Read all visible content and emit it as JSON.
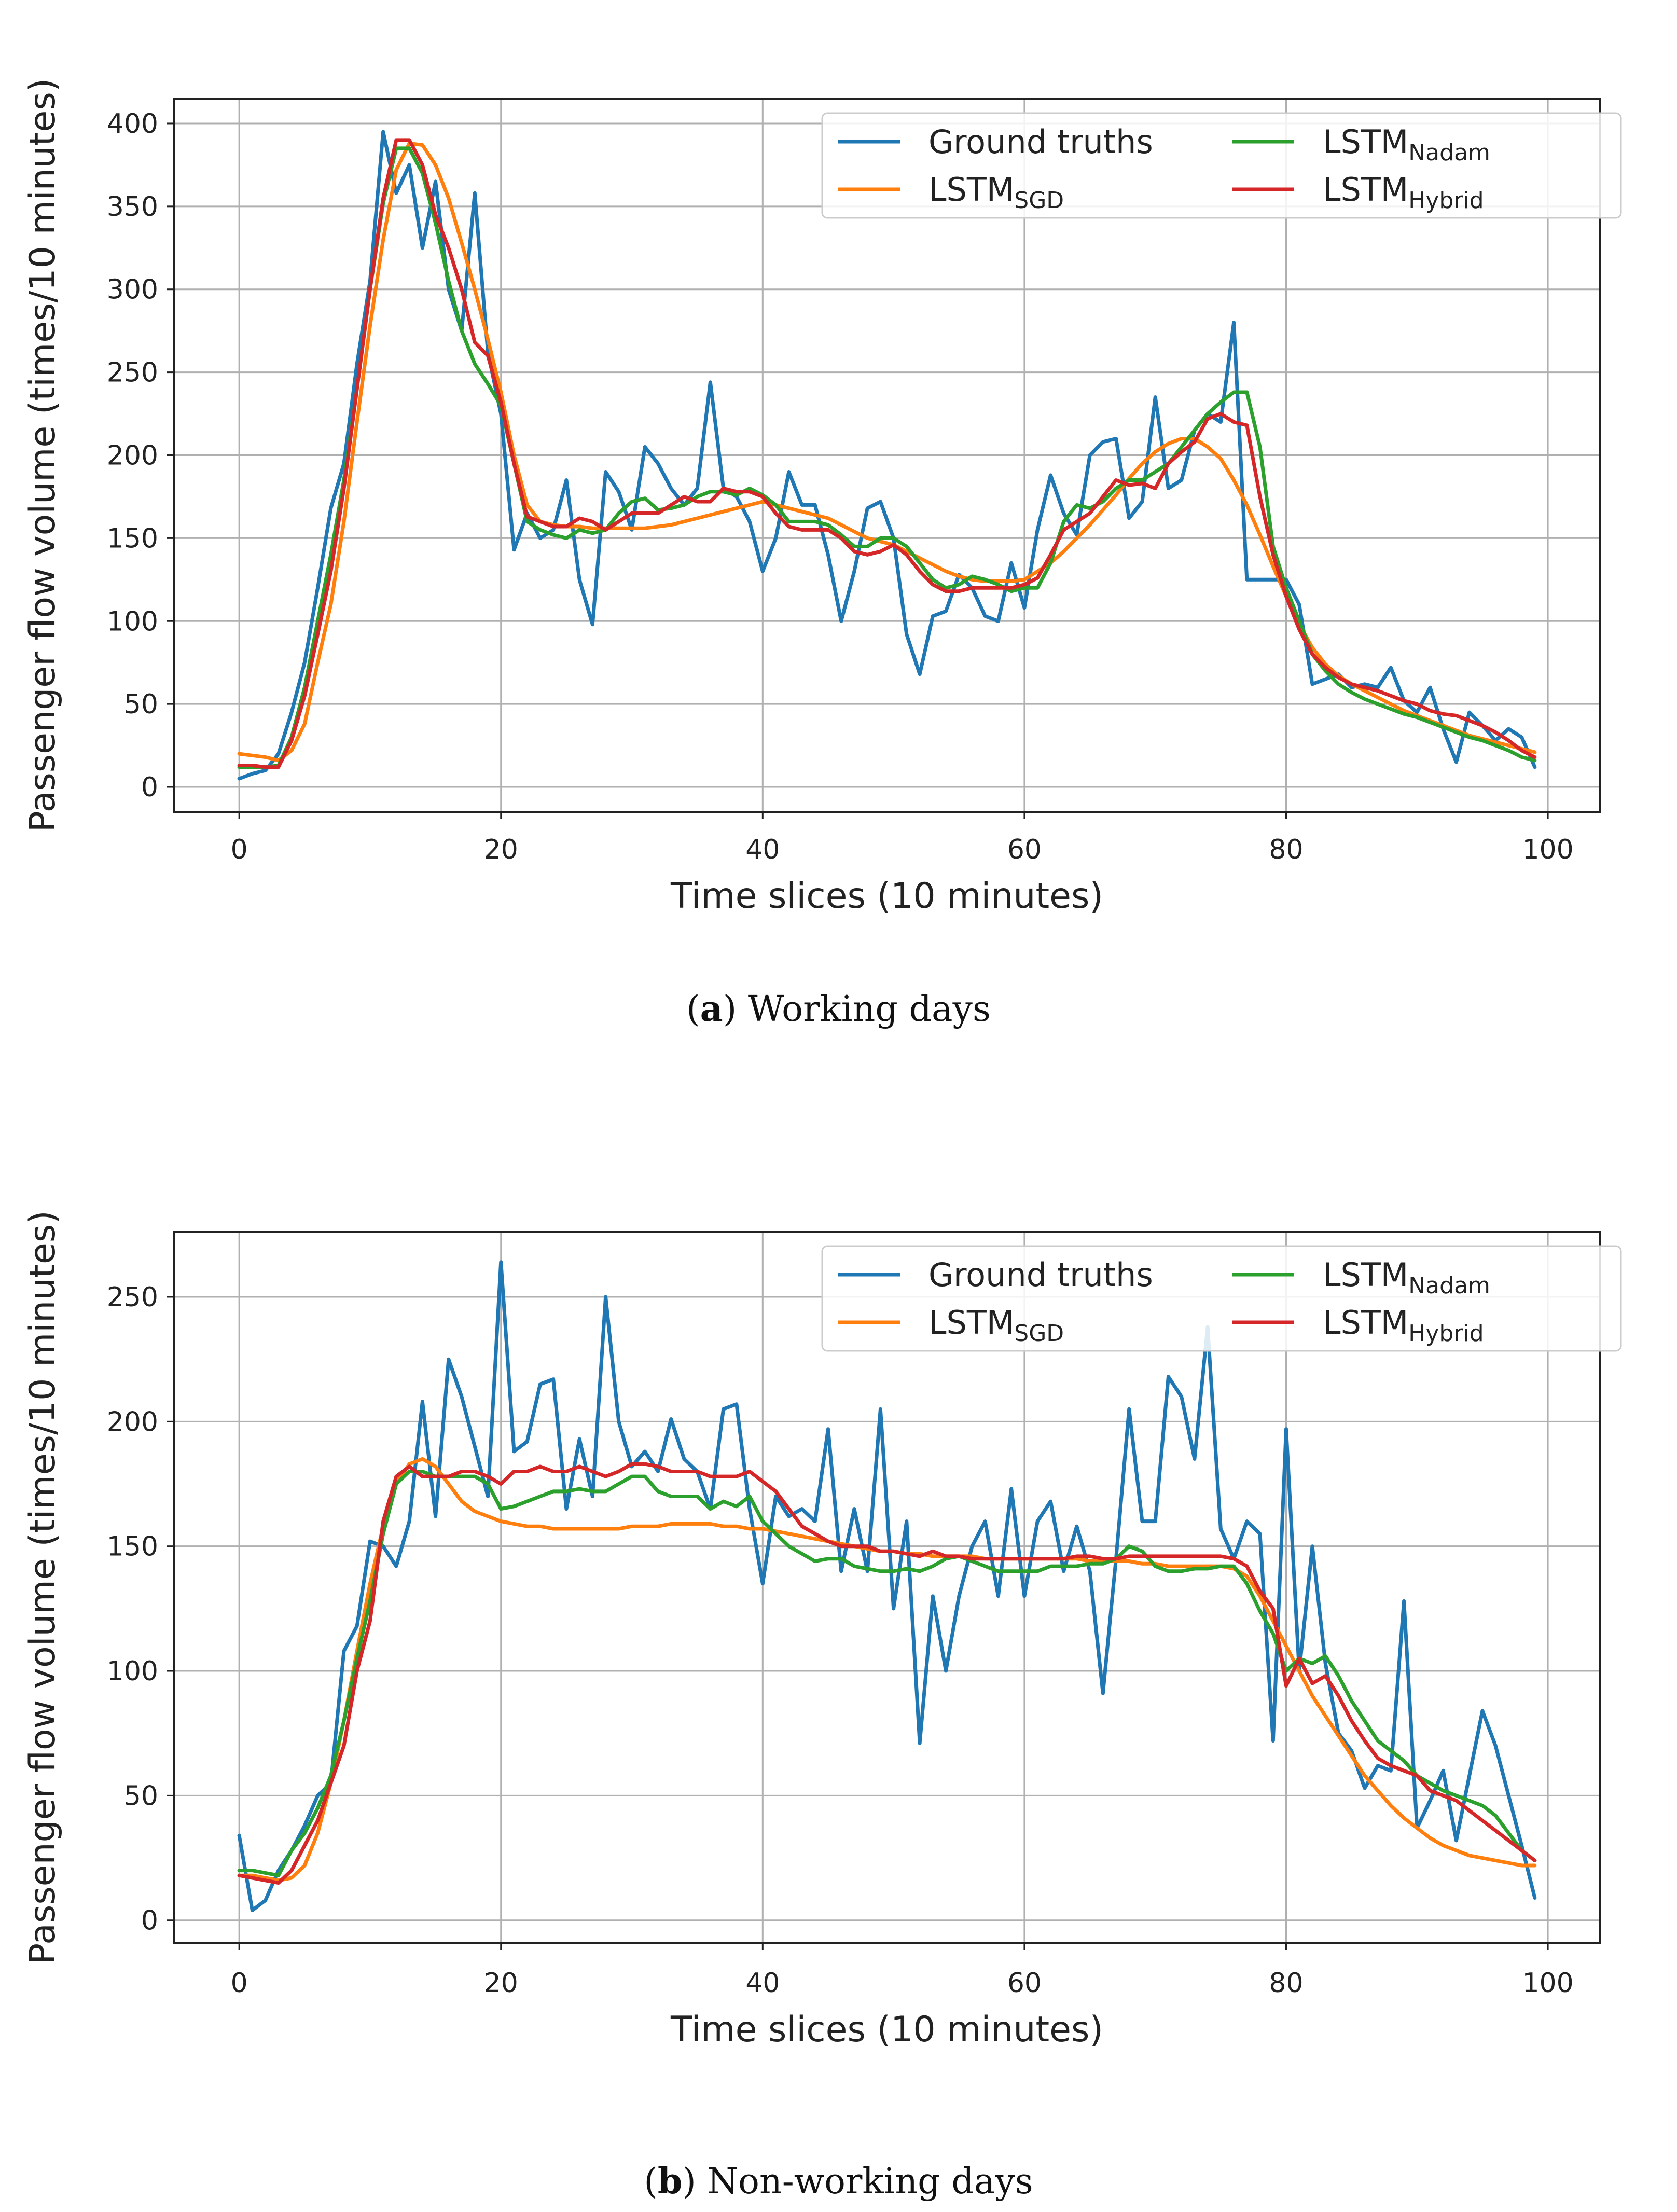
{
  "chart_data": [
    {
      "type": "line",
      "caption_label": "a",
      "caption_text": "Working days",
      "xlabel": "Time slices (10 minutes)",
      "ylabel": "Passenger flow volume (times/10 minutes)",
      "xlim": [
        -5,
        104
      ],
      "ylim": [
        -15,
        415
      ],
      "xticks": [
        0,
        20,
        40,
        60,
        80,
        100
      ],
      "yticks": [
        0,
        50,
        100,
        150,
        200,
        250,
        300,
        350,
        400
      ],
      "grid": true,
      "legend_position": "top-right",
      "series": [
        {
          "name": "Ground truths",
          "base": "Ground truths",
          "sub": "",
          "color": "#1f77b4",
          "values": [
            5,
            8,
            10,
            20,
            45,
            75,
            120,
            168,
            195,
            255,
            305,
            395,
            358,
            375,
            325,
            365,
            300,
            275,
            358,
            262,
            225,
            143,
            165,
            150,
            155,
            185,
            125,
            98,
            190,
            178,
            155,
            205,
            195,
            180,
            170,
            180,
            244,
            180,
            175,
            160,
            130,
            150,
            190,
            170,
            170,
            140,
            100,
            130,
            168,
            172,
            150,
            92,
            68,
            103,
            106,
            128,
            120,
            103,
            100,
            135,
            108,
            155,
            188,
            165,
            152,
            200,
            208,
            210,
            162,
            172,
            235,
            180,
            185,
            215,
            225,
            220,
            280,
            125,
            125,
            125,
            125,
            110,
            62,
            65,
            68,
            60,
            62,
            60,
            72,
            52,
            45,
            60,
            35,
            15,
            45,
            37,
            28,
            35,
            30,
            12
          ]
        },
        {
          "name": "LSTM_SGD",
          "base": "LSTM",
          "sub": "SGD",
          "color": "#ff7f0e",
          "values": [
            20,
            19,
            18,
            16,
            22,
            38,
            75,
            110,
            160,
            220,
            278,
            330,
            372,
            388,
            387,
            375,
            355,
            328,
            300,
            270,
            238,
            200,
            170,
            160,
            158,
            157,
            157,
            156,
            156,
            156,
            156,
            156,
            157,
            158,
            160,
            162,
            164,
            166,
            168,
            170,
            172,
            170,
            168,
            166,
            164,
            162,
            158,
            154,
            150,
            148,
            146,
            142,
            138,
            134,
            130,
            127,
            125,
            124,
            124,
            124,
            125,
            130,
            135,
            142,
            150,
            158,
            167,
            176,
            186,
            195,
            202,
            207,
            210,
            210,
            205,
            198,
            185,
            170,
            152,
            133,
            115,
            98,
            84,
            74,
            67,
            62,
            58,
            54,
            50,
            46,
            43,
            40,
            37,
            34,
            31,
            29,
            27,
            25,
            23,
            21
          ]
        },
        {
          "name": "LSTM_Nadam",
          "base": "LSTM",
          "sub": "Nadam",
          "color": "#2ca02c",
          "values": [
            12,
            12,
            12,
            13,
            30,
            60,
            100,
            140,
            185,
            240,
            300,
            352,
            385,
            385,
            370,
            340,
            305,
            275,
            255,
            243,
            230,
            195,
            160,
            155,
            152,
            150,
            155,
            153,
            155,
            165,
            172,
            174,
            167,
            168,
            170,
            175,
            178,
            178,
            176,
            180,
            176,
            170,
            160,
            160,
            160,
            158,
            152,
            145,
            145,
            150,
            150,
            145,
            135,
            125,
            120,
            122,
            127,
            125,
            122,
            118,
            120,
            120,
            135,
            160,
            170,
            168,
            172,
            180,
            185,
            185,
            190,
            195,
            205,
            215,
            225,
            232,
            238,
            238,
            205,
            145,
            120,
            100,
            80,
            70,
            62,
            57,
            53,
            50,
            47,
            44,
            42,
            39,
            36,
            33,
            30,
            28,
            25,
            22,
            18,
            16
          ]
        },
        {
          "name": "LSTM_Hybrid",
          "base": "LSTM",
          "sub": "Hybrid",
          "color": "#d62728",
          "values": [
            13,
            13,
            12,
            12,
            28,
            55,
            92,
            130,
            180,
            240,
            300,
            355,
            390,
            390,
            375,
            345,
            325,
            300,
            268,
            260,
            232,
            195,
            163,
            160,
            157,
            157,
            162,
            160,
            155,
            160,
            165,
            165,
            165,
            170,
            175,
            172,
            172,
            180,
            178,
            178,
            175,
            165,
            157,
            155,
            155,
            155,
            150,
            142,
            140,
            142,
            146,
            140,
            130,
            122,
            118,
            118,
            120,
            120,
            120,
            120,
            122,
            126,
            140,
            155,
            160,
            165,
            175,
            185,
            182,
            183,
            180,
            195,
            202,
            208,
            222,
            225,
            220,
            218,
            175,
            140,
            115,
            95,
            80,
            72,
            66,
            62,
            60,
            58,
            55,
            52,
            50,
            46,
            44,
            43,
            40,
            37,
            33,
            28,
            22,
            18
          ]
        }
      ]
    },
    {
      "type": "line",
      "caption_label": "b",
      "caption_text": "Non-working days",
      "xlabel": "Time slices (10 minutes)",
      "ylabel": "Passenger flow volume (times/10 minutes)",
      "xlim": [
        -5,
        104
      ],
      "ylim": [
        -9,
        276
      ],
      "xticks": [
        0,
        20,
        40,
        60,
        80,
        100
      ],
      "yticks": [
        0,
        50,
        100,
        150,
        200,
        250
      ],
      "grid": true,
      "legend_position": "top-right",
      "series": [
        {
          "name": "Ground truths",
          "base": "Ground truths",
          "sub": "",
          "color": "#1f77b4",
          "values": [
            34,
            4,
            8,
            20,
            28,
            38,
            50,
            55,
            108,
            118,
            152,
            150,
            142,
            160,
            208,
            162,
            225,
            210,
            190,
            170,
            264,
            188,
            192,
            215,
            217,
            165,
            193,
            170,
            250,
            200,
            182,
            188,
            180,
            201,
            185,
            180,
            165,
            205,
            207,
            165,
            135,
            170,
            162,
            165,
            160,
            197,
            140,
            165,
            140,
            205,
            125,
            160,
            71,
            130,
            100,
            130,
            150,
            160,
            130,
            173,
            130,
            160,
            168,
            140,
            158,
            140,
            91,
            145,
            205,
            160,
            160,
            218,
            210,
            185,
            238,
            157,
            145,
            160,
            155,
            72,
            197,
            100,
            150,
            103,
            75,
            68,
            53,
            62,
            60,
            128,
            37,
            48,
            60,
            32,
            58,
            84,
            70,
            50,
            30,
            9
          ]
        },
        {
          "name": "LSTM_SGD",
          "base": "LSTM",
          "sub": "SGD",
          "color": "#ff7f0e",
          "values": [
            18,
            18,
            17,
            16,
            17,
            22,
            35,
            55,
            80,
            108,
            135,
            158,
            175,
            183,
            185,
            182,
            175,
            168,
            164,
            162,
            160,
            159,
            158,
            158,
            157,
            157,
            157,
            157,
            157,
            157,
            158,
            158,
            158,
            159,
            159,
            159,
            159,
            158,
            158,
            157,
            157,
            156,
            155,
            154,
            153,
            152,
            151,
            150,
            149,
            148,
            148,
            147,
            147,
            146,
            146,
            146,
            146,
            145,
            145,
            145,
            145,
            145,
            145,
            145,
            145,
            144,
            144,
            144,
            144,
            143,
            143,
            142,
            142,
            142,
            142,
            142,
            141,
            138,
            130,
            120,
            110,
            100,
            90,
            82,
            74,
            66,
            58,
            52,
            46,
            41,
            37,
            33,
            30,
            28,
            26,
            25,
            24,
            23,
            22,
            22
          ]
        },
        {
          "name": "LSTM_Nadam",
          "base": "LSTM",
          "sub": "Nadam",
          "color": "#2ca02c",
          "values": [
            20,
            20,
            19,
            18,
            28,
            35,
            45,
            58,
            80,
            105,
            128,
            155,
            175,
            180,
            180,
            178,
            178,
            178,
            178,
            175,
            165,
            166,
            168,
            170,
            172,
            172,
            173,
            172,
            172,
            175,
            178,
            178,
            172,
            170,
            170,
            170,
            165,
            168,
            166,
            170,
            160,
            155,
            150,
            147,
            144,
            145,
            145,
            142,
            141,
            140,
            140,
            141,
            140,
            142,
            145,
            146,
            144,
            142,
            140,
            140,
            140,
            140,
            142,
            142,
            142,
            143,
            143,
            145,
            150,
            148,
            142,
            140,
            140,
            141,
            141,
            142,
            142,
            135,
            124,
            115,
            100,
            105,
            103,
            106,
            98,
            88,
            80,
            72,
            68,
            64,
            58,
            55,
            52,
            50,
            48,
            46,
            42,
            35,
            28,
            24
          ]
        },
        {
          "name": "LSTM_Hybrid",
          "base": "LSTM",
          "sub": "Hybrid",
          "color": "#d62728",
          "values": [
            18,
            17,
            16,
            15,
            20,
            30,
            40,
            55,
            70,
            100,
            120,
            160,
            178,
            182,
            178,
            178,
            178,
            180,
            180,
            178,
            175,
            180,
            180,
            182,
            180,
            180,
            182,
            180,
            178,
            180,
            183,
            183,
            182,
            180,
            180,
            180,
            178,
            178,
            178,
            180,
            176,
            172,
            165,
            158,
            155,
            152,
            150,
            150,
            150,
            148,
            148,
            147,
            146,
            148,
            146,
            146,
            145,
            145,
            145,
            145,
            145,
            145,
            145,
            145,
            146,
            146,
            145,
            145,
            146,
            146,
            146,
            146,
            146,
            146,
            146,
            146,
            145,
            142,
            132,
            125,
            94,
            105,
            95,
            98,
            90,
            80,
            72,
            65,
            62,
            60,
            58,
            52,
            50,
            48,
            44,
            40,
            36,
            32,
            28,
            24
          ]
        }
      ]
    }
  ]
}
